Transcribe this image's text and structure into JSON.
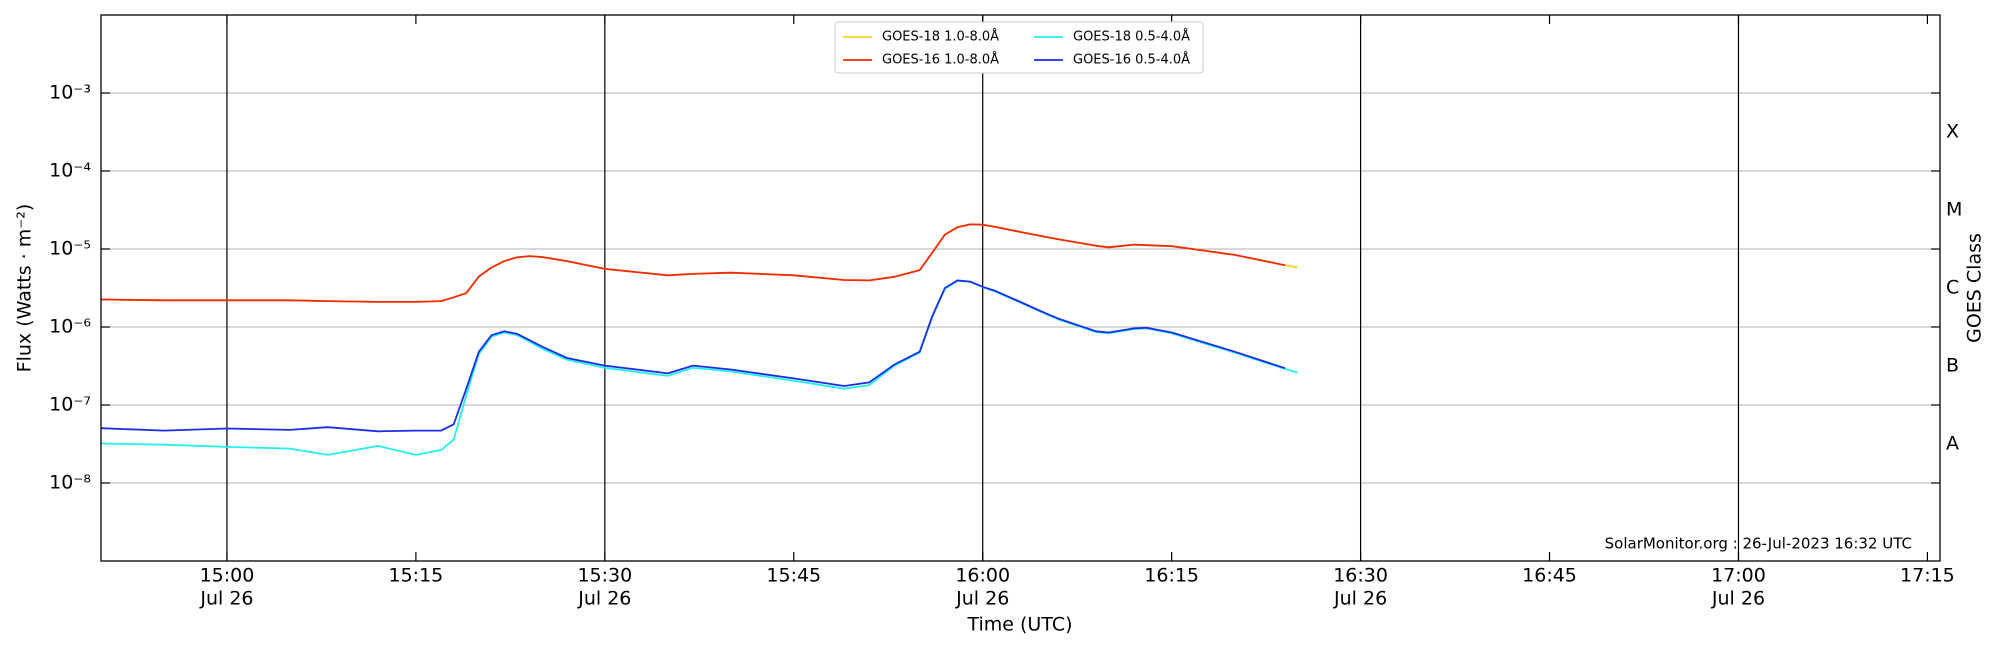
{
  "chart_data": {
    "type": "line",
    "xlabel": "Time (UTC)",
    "ylabel": "Flux (Watts · m⁻²)",
    "y2label": "GOES Class",
    "annotation": "SolarMonitor.org : 26-Jul-2023 16:32 UTC",
    "log_y": true,
    "grid": true,
    "legend": "upper center",
    "xlim": [
      "Jul 26 14:50",
      "Jul 26 17:16"
    ],
    "xticks": [
      {
        "value": "Jul 26 15:00",
        "label": [
          "15:00",
          "Jul 26"
        ]
      },
      {
        "value": "Jul 26 15:15",
        "label": [
          "15:15"
        ]
      },
      {
        "value": "Jul 26 15:30",
        "label": [
          "15:30",
          "Jul 26"
        ]
      },
      {
        "value": "Jul 26 15:45",
        "label": [
          "15:45"
        ]
      },
      {
        "value": "Jul 26 16:00",
        "label": [
          "16:00",
          "Jul 26"
        ]
      },
      {
        "value": "Jul 26 16:15",
        "label": [
          "16:15"
        ]
      },
      {
        "value": "Jul 26 16:30",
        "label": [
          "16:30",
          "Jul 26"
        ]
      },
      {
        "value": "Jul 26 16:45",
        "label": [
          "16:45"
        ]
      },
      {
        "value": "Jul 26 17:00",
        "label": [
          "17:00",
          "Jul 26"
        ]
      },
      {
        "value": "Jul 26 17:15",
        "label": [
          "17:15"
        ]
      }
    ],
    "ylim": [
      1e-09,
      0.01
    ],
    "yticks": [
      {
        "value": 1e-08,
        "label": "10⁻⁸"
      },
      {
        "value": 1e-07,
        "label": "10⁻⁷"
      },
      {
        "value": 1e-06,
        "label": "10⁻⁶"
      },
      {
        "value": 1e-05,
        "label": "10⁻⁵"
      },
      {
        "value": 0.0001,
        "label": "10⁻⁴"
      },
      {
        "value": 0.001,
        "label": "10⁻³"
      }
    ],
    "y2lim": [
      1e-09,
      0.01
    ],
    "y2ticks": [
      {
        "value": 3.16e-08,
        "label": "A"
      },
      {
        "value": 3.16e-07,
        "label": "B"
      },
      {
        "value": 3.16e-06,
        "label": "C"
      },
      {
        "value": 3.16e-05,
        "label": "M"
      },
      {
        "value": 0.000316,
        "label": "X"
      }
    ],
    "x": [
      "Jul 26 14:50",
      "Jul 26 14:55",
      "Jul 26 15:00",
      "Jul 26 15:05",
      "Jul 26 15:08",
      "Jul 26 15:12",
      "Jul 26 15:15",
      "Jul 26 15:17",
      "Jul 26 15:18",
      "Jul 26 15:19",
      "Jul 26 15:20",
      "Jul 26 15:21",
      "Jul 26 15:22",
      "Jul 26 15:23",
      "Jul 26 15:24",
      "Jul 26 15:25",
      "Jul 26 15:27",
      "Jul 26 15:30",
      "Jul 26 15:35",
      "Jul 26 15:37",
      "Jul 26 15:40",
      "Jul 26 15:45",
      "Jul 26 15:49",
      "Jul 26 15:51",
      "Jul 26 15:53",
      "Jul 26 15:55",
      "Jul 26 15:56",
      "Jul 26 15:57",
      "Jul 26 15:58",
      "Jul 26 15:59",
      "Jul 26 16:00",
      "Jul 26 16:01",
      "Jul 26 16:03",
      "Jul 26 16:05",
      "Jul 26 16:06",
      "Jul 26 16:09",
      "Jul 26 16:10",
      "Jul 26 16:12",
      "Jul 26 16:13",
      "Jul 26 16:15",
      "Jul 26 16:20",
      "Jul 26 16:24",
      "Jul 26 16:25"
    ],
    "series": [
      {
        "name": "GOES-18 1.0-8.0Å",
        "color": "#ffd21f",
        "values": [
          2.25e-06,
          2.2e-06,
          2.2e-06,
          2.2e-06,
          2.15e-06,
          2.1e-06,
          2.1e-06,
          2.15e-06,
          2.4e-06,
          2.72e-06,
          4.44e-06,
          5.8e-06,
          6.97e-06,
          7.8e-06,
          8.1e-06,
          7.9e-06,
          7e-06,
          5.56e-06,
          4.6e-06,
          4.8e-06,
          4.97e-06,
          4.6e-06,
          4e-06,
          3.96e-06,
          4.4e-06,
          5.36e-06,
          9e-06,
          1.53e-05,
          1.9e-05,
          2.07e-05,
          2.05e-05,
          1.92e-05,
          1.65e-05,
          1.43e-05,
          1.33e-05,
          1.1e-05,
          1.05e-05,
          1.14e-05,
          1.12e-05,
          1.09e-05,
          8.4e-06,
          6.2e-06,
          5.8e-06
        ]
      },
      {
        "name": "GOES-16 1.0-8.0Å",
        "color": "#ee2c0c",
        "values": [
          2.25e-06,
          2.2e-06,
          2.2e-06,
          2.2e-06,
          2.15e-06,
          2.1e-06,
          2.1e-06,
          2.15e-06,
          2.4e-06,
          2.72e-06,
          4.44e-06,
          5.8e-06,
          6.97e-06,
          7.8e-06,
          8.1e-06,
          7.9e-06,
          7e-06,
          5.56e-06,
          4.6e-06,
          4.8e-06,
          4.97e-06,
          4.6e-06,
          4e-06,
          3.96e-06,
          4.4e-06,
          5.36e-06,
          9e-06,
          1.53e-05,
          1.9e-05,
          2.07e-05,
          2.05e-05,
          1.92e-05,
          1.65e-05,
          1.43e-05,
          1.33e-05,
          1.1e-05,
          1.05e-05,
          1.14e-05,
          1.12e-05,
          1.09e-05,
          8.4e-06,
          6.2e-06,
          null
        ]
      },
      {
        "name": "GOES-18 0.5-4.0Å",
        "color": "#22f0f0",
        "values": [
          3.21e-08,
          3.1e-08,
          2.9e-08,
          2.76e-08,
          2.29e-08,
          2.98e-08,
          2.29e-08,
          2.66e-08,
          3.6e-08,
          1.34e-07,
          4.5e-07,
          7.5e-07,
          8.5e-07,
          7.9e-07,
          6.5e-07,
          5.3e-07,
          3.8e-07,
          3e-07,
          2.36e-07,
          3e-07,
          2.7e-07,
          2.05e-07,
          1.62e-07,
          1.8e-07,
          3.2e-07,
          4.7e-07,
          1.35e-06,
          3.1e-06,
          3.9e-06,
          3.8e-06,
          3.25e-06,
          2.85e-06,
          2.05e-06,
          1.47e-06,
          1.25e-06,
          8.6e-07,
          8.3e-07,
          9.4e-07,
          9.6e-07,
          8.3e-07,
          4.7e-07,
          2.9e-07,
          2.6e-07
        ]
      },
      {
        "name": "GOES-16 0.5-4.0Å",
        "color": "#1b2ee6",
        "values": [
          5.04e-08,
          4.7e-08,
          5e-08,
          4.8e-08,
          5.2e-08,
          4.6e-08,
          4.7e-08,
          4.7e-08,
          5.65e-08,
          1.62e-07,
          4.82e-07,
          7.85e-07,
          8.8e-07,
          8.2e-07,
          6.8e-07,
          5.6e-07,
          4e-07,
          3.2e-07,
          2.54e-07,
          3.2e-07,
          2.85e-07,
          2.19e-07,
          1.75e-07,
          1.95e-07,
          3.31e-07,
          4.82e-07,
          1.38e-06,
          3.16e-06,
          3.96e-06,
          3.82e-06,
          3.28e-06,
          2.9e-06,
          2.09e-06,
          1.5e-06,
          1.28e-06,
          8.8e-07,
          8.5e-07,
          9.6e-07,
          9.8e-07,
          8.5e-07,
          4.82e-07,
          2.96e-07,
          null
        ]
      }
    ]
  }
}
